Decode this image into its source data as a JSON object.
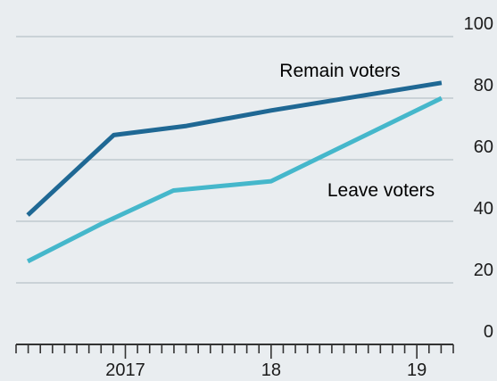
{
  "chart_data": {
    "type": "line",
    "title": "",
    "xlabel": "",
    "ylabel": "",
    "ylim": [
      0,
      100
    ],
    "yticks": [
      0,
      20,
      40,
      60,
      80,
      100
    ],
    "grid": true,
    "x_tick_labels": [
      {
        "x": 2017.0,
        "label": "2017"
      },
      {
        "x": 2018.0,
        "label": "18"
      },
      {
        "x": 2019.0,
        "label": "19"
      }
    ],
    "xlim": [
      2016.25,
      2019.25
    ],
    "series": [
      {
        "name": "Remain voters",
        "color": "#1f6894",
        "x": [
          2016.33,
          2016.92,
          2017.42,
          2018.0,
          2019.17
        ],
        "y": [
          42,
          68,
          71,
          76,
          85
        ]
      },
      {
        "name": "Leave voters",
        "color": "#45b7cb",
        "x": [
          2016.33,
          2016.83,
          2017.33,
          2018.0,
          2019.17
        ],
        "y": [
          27,
          39,
          50,
          53,
          80
        ]
      }
    ]
  }
}
